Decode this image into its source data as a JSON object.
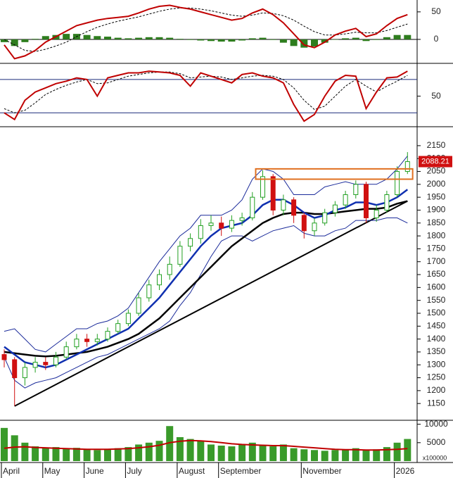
{
  "chart_data": [
    {
      "type": "line",
      "ylim": [
        -41,
        69
      ],
      "yticks": [
        0,
        50
      ],
      "zero_line": true,
      "bars": {
        "up_color": "#2e7d1e",
        "down_color": "#2e7d1e",
        "values": [
          -5,
          -12,
          -5,
          1,
          6,
          8,
          10,
          10,
          8,
          6,
          5,
          3,
          2,
          3,
          4,
          4,
          3,
          1,
          -1,
          -2,
          -3,
          -4,
          -4,
          -2,
          2,
          3,
          -1,
          -6,
          -12,
          -15,
          -13,
          -6,
          0,
          2,
          3,
          -3,
          -1,
          4,
          8,
          8
        ]
      },
      "series": [
        {
          "color": "#000000",
          "dashed": true,
          "width": 1,
          "values": [
            0,
            -10,
            -20,
            -22,
            -18,
            -12,
            -5,
            5,
            14,
            22,
            28,
            33,
            37,
            41,
            46,
            51,
            55,
            57,
            57,
            55,
            52,
            48,
            44,
            42,
            44,
            48,
            47,
            43,
            35,
            24,
            14,
            8,
            8,
            10,
            13,
            12,
            12,
            16,
            22,
            28
          ]
        },
        {
          "color": "#c00000",
          "dashed": false,
          "width": 2,
          "values": [
            -10,
            -35,
            -30,
            -20,
            -5,
            5,
            15,
            25,
            30,
            35,
            38,
            40,
            42,
            48,
            55,
            60,
            62,
            58,
            55,
            50,
            45,
            40,
            35,
            38,
            48,
            55,
            45,
            30,
            10,
            -10,
            -15,
            -5,
            8,
            15,
            20,
            5,
            10,
            25,
            38,
            45
          ]
        }
      ]
    },
    {
      "type": "line",
      "ylim": [
        15,
        86
      ],
      "yticks": [
        50
      ],
      "levels": [
        30,
        70
      ],
      "series": [
        {
          "color": "#000000",
          "dashed": true,
          "width": 1,
          "values": [
            35,
            30,
            33,
            42,
            52,
            58,
            63,
            67,
            70,
            65,
            66,
            70,
            74,
            76,
            78,
            79,
            79,
            77,
            72,
            73,
            74,
            73,
            70,
            72,
            74,
            75,
            74,
            70,
            60,
            45,
            34,
            38,
            50,
            62,
            70,
            62,
            55,
            62,
            68,
            75
          ]
        },
        {
          "color": "#c00000",
          "dashed": false,
          "width": 2,
          "values": [
            30,
            22,
            45,
            55,
            60,
            65,
            68,
            72,
            70,
            50,
            72,
            75,
            78,
            78,
            80,
            79,
            78,
            75,
            62,
            78,
            74,
            70,
            66,
            76,
            78,
            74,
            72,
            66,
            40,
            20,
            28,
            50,
            68,
            75,
            74,
            35,
            55,
            72,
            73,
            80
          ]
        }
      ]
    },
    {
      "type": "candlestick",
      "ylim": [
        1085,
        2218
      ],
      "yticks": [
        1150,
        1200,
        1250,
        1300,
        1350,
        1400,
        1450,
        1500,
        1550,
        1600,
        1650,
        1700,
        1750,
        1800,
        1850,
        1900,
        1950,
        2000,
        2050,
        2100,
        2150
      ],
      "categories": [
        "April",
        null,
        null,
        null,
        "May",
        null,
        null,
        null,
        "June",
        null,
        null,
        null,
        "July",
        null,
        null,
        null,
        null,
        "August",
        null,
        null,
        null,
        "September",
        null,
        null,
        null,
        null,
        null,
        null,
        null,
        "November",
        null,
        null,
        null,
        null,
        null,
        null,
        null,
        null,
        "2026",
        null
      ],
      "up_color": "#22a022",
      "down_color": "#d01010",
      "open": [
        1340,
        1320,
        1250,
        1290,
        1310,
        1300,
        1330,
        1370,
        1400,
        1390,
        1400,
        1430,
        1460,
        1500,
        1560,
        1610,
        1650,
        1690,
        1760,
        1790,
        1840,
        1850,
        1830,
        1860,
        1870,
        1950,
        2030,
        1900,
        1940,
        1880,
        1820,
        1850,
        1890,
        1920,
        1960,
        2000,
        1870,
        1900,
        1960,
        2050
      ],
      "high": [
        1360,
        1330,
        1310,
        1330,
        1330,
        1350,
        1390,
        1420,
        1420,
        1420,
        1445,
        1475,
        1515,
        1580,
        1630,
        1670,
        1720,
        1780,
        1810,
        1865,
        1880,
        1875,
        1880,
        1890,
        1970,
        2055,
        2040,
        1960,
        1950,
        1890,
        1870,
        1905,
        1935,
        1975,
        2015,
        2010,
        1920,
        1975,
        2070,
        2125
      ],
      "low": [
        1290,
        1140,
        1220,
        1270,
        1280,
        1290,
        1320,
        1360,
        1370,
        1375,
        1390,
        1420,
        1450,
        1490,
        1545,
        1590,
        1630,
        1680,
        1740,
        1770,
        1820,
        1800,
        1815,
        1840,
        1860,
        1940,
        1880,
        1880,
        1850,
        1790,
        1800,
        1840,
        1875,
        1905,
        1945,
        1850,
        1855,
        1890,
        1950,
        2040
      ],
      "close": [
        1320,
        1250,
        1290,
        1310,
        1300,
        1330,
        1370,
        1400,
        1390,
        1400,
        1430,
        1460,
        1500,
        1560,
        1610,
        1650,
        1690,
        1760,
        1790,
        1840,
        1850,
        1830,
        1860,
        1870,
        1950,
        2030,
        1900,
        1940,
        1880,
        1820,
        1850,
        1890,
        1920,
        1960,
        2000,
        1870,
        1900,
        1960,
        2050,
        2088.21
      ],
      "last_color": "#d01010",
      "overlays": [
        {
          "color": "#1a2a9a",
          "width": 1,
          "values": [
            1430,
            1440,
            1400,
            1360,
            1350,
            1380,
            1410,
            1440,
            1440,
            1460,
            1470,
            1490,
            1520,
            1580,
            1640,
            1700,
            1750,
            1800,
            1830,
            1880,
            1880,
            1880,
            1900,
            1940,
            2020,
            2060,
            2050,
            2020,
            1960,
            1960,
            1960,
            1990,
            2000,
            2010,
            2000,
            2000,
            2000,
            2020,
            2060,
            2110
          ]
        },
        {
          "color": "#1a2a9a",
          "width": 1,
          "values": [
            1330,
            1240,
            1210,
            1230,
            1240,
            1250,
            1270,
            1290,
            1310,
            1330,
            1340,
            1360,
            1380,
            1400,
            1420,
            1440,
            1470,
            1530,
            1580,
            1650,
            1720,
            1780,
            1800,
            1800,
            1780,
            1800,
            1820,
            1830,
            1840,
            1810,
            1800,
            1800,
            1820,
            1830,
            1860,
            1860,
            1860,
            1870,
            1870,
            1850
          ]
        },
        {
          "color": "#000000",
          "width": 2.5,
          "values": [
            1350,
            1345,
            1340,
            1335,
            1333,
            1335,
            1340,
            1345,
            1350,
            1360,
            1370,
            1385,
            1400,
            1420,
            1450,
            1480,
            1520,
            1560,
            1600,
            1640,
            1680,
            1720,
            1760,
            1790,
            1820,
            1850,
            1870,
            1885,
            1890,
            1890,
            1885,
            1885,
            1890,
            1895,
            1900,
            1905,
            1905,
            1910,
            1925,
            1935
          ]
        },
        {
          "color": "#1030b0",
          "width": 2.5,
          "values": [
            1370,
            1340,
            1310,
            1300,
            1290,
            1300,
            1320,
            1340,
            1360,
            1380,
            1400,
            1420,
            1440,
            1480,
            1520,
            1560,
            1610,
            1660,
            1710,
            1760,
            1800,
            1830,
            1840,
            1850,
            1880,
            1920,
            1940,
            1940,
            1920,
            1890,
            1870,
            1880,
            1900,
            1910,
            1930,
            1930,
            1920,
            1930,
            1950,
            1980
          ]
        }
      ],
      "trendline": {
        "color": "#000000",
        "x": [
          1,
          39
        ],
        "y": [
          1140,
          1935
        ]
      },
      "zone": {
        "color": "#e07020",
        "x": [
          25,
          39.5
        ],
        "y": [
          2020,
          2060
        ]
      }
    },
    {
      "type": "bar",
      "ylim": [
        0,
        10500
      ],
      "yticks": [
        5000,
        10000
      ],
      "unit_label": "x100000",
      "color": "#3a9a2a",
      "values": [
        9000,
        7000,
        5000,
        4000,
        3500,
        3800,
        3500,
        3600,
        3200,
        3000,
        3200,
        3500,
        3800,
        4500,
        5000,
        5500,
        9500,
        6500,
        6000,
        5500,
        4500,
        4200,
        4000,
        4500,
        5000,
        4200,
        4000,
        4500,
        3500,
        3200,
        3000,
        2800,
        3000,
        3200,
        3500,
        3000,
        3200,
        3800,
        5000,
        6000
      ],
      "overlays": [
        {
          "color": "#c00000",
          "width": 2,
          "values": [
            3500,
            3800,
            3900,
            3700,
            3600,
            3500,
            3400,
            3300,
            3200,
            3200,
            3200,
            3300,
            3400,
            3600,
            3900,
            4300,
            5000,
            5400,
            5600,
            5500,
            5300,
            5000,
            4700,
            4500,
            4400,
            4300,
            4200,
            4200,
            4000,
            3800,
            3600,
            3400,
            3200,
            3100,
            3100,
            3000,
            3000,
            3100,
            3200,
            3400
          ]
        }
      ]
    }
  ]
}
